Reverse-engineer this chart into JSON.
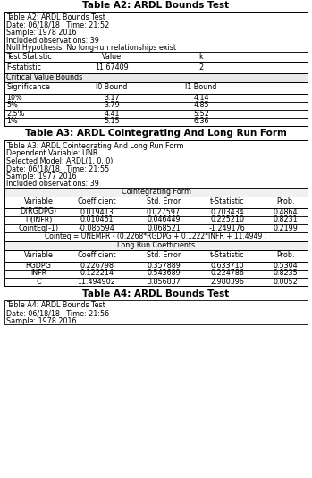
{
  "title_a2": "Table A2: ARDL Bounds Test",
  "title_a3": "Table A3: ARDL Cointegrating And Long Run Form",
  "title_a4": "Table A4: ARDL Bounds Test",
  "a2_header_lines": [
    "Table A2: ARDL Bounds Test",
    "Date: 06/18/18   Time: 21:52",
    "Sample: 1978 2016",
    "Included observations: 39",
    "Null Hypothesis: No long-run relationships exist"
  ],
  "a2_cv_rows": [
    [
      "10%",
      "3.17",
      "4.14"
    ],
    [
      "5%",
      "3.79",
      "4.85"
    ],
    [
      "2.5%",
      "4.41",
      "5.52"
    ],
    [
      "1%",
      "5.15",
      "6.36"
    ]
  ],
  "a3_header_lines": [
    "Table A3: ARDL Cointegrating And Long Run Form",
    "Dependent Variable: UNR",
    "Selected Model: ARDL(1, 0, 0)",
    "Date: 06/18/18   Time: 21:55",
    "Sample: 1977 2016",
    "Included observations: 39"
  ],
  "a3_coint_rows": [
    [
      "D(RGDPG)",
      "0.019413",
      "0.027597",
      "0.703434",
      "0.4864"
    ],
    [
      "D(INFR)",
      "0.010461",
      "0.046449",
      "0.225210",
      "0.8231"
    ],
    [
      "CointEq(-1)",
      "-0.085594",
      "0.068521",
      "-1.249176",
      "0.2199"
    ]
  ],
  "a3_cointeq_line": "Cointeq = UNEMPR - (0.2268*RGDPG + 0.1222*INFR + 11.4949 )",
  "a3_lr_rows": [
    [
      "RGDPG",
      "0.226798",
      "0.357889",
      "0.633710",
      "0.5304"
    ],
    [
      "INFR",
      "0.122214",
      "0.543689",
      "0.224786",
      "0.8235"
    ],
    [
      "C",
      "11.494902",
      "3.856837",
      "2.980396",
      "0.0052"
    ]
  ],
  "a4_header_lines": [
    "Table A4: ARDL Bounds Test",
    "Date: 06/18/18   Time: 21:56",
    "Sample: 1978 2016"
  ],
  "bg_color": "#ffffff",
  "border_color": "#000000",
  "fs": 5.8,
  "fs_title": 7.5,
  "lw": 0.6
}
